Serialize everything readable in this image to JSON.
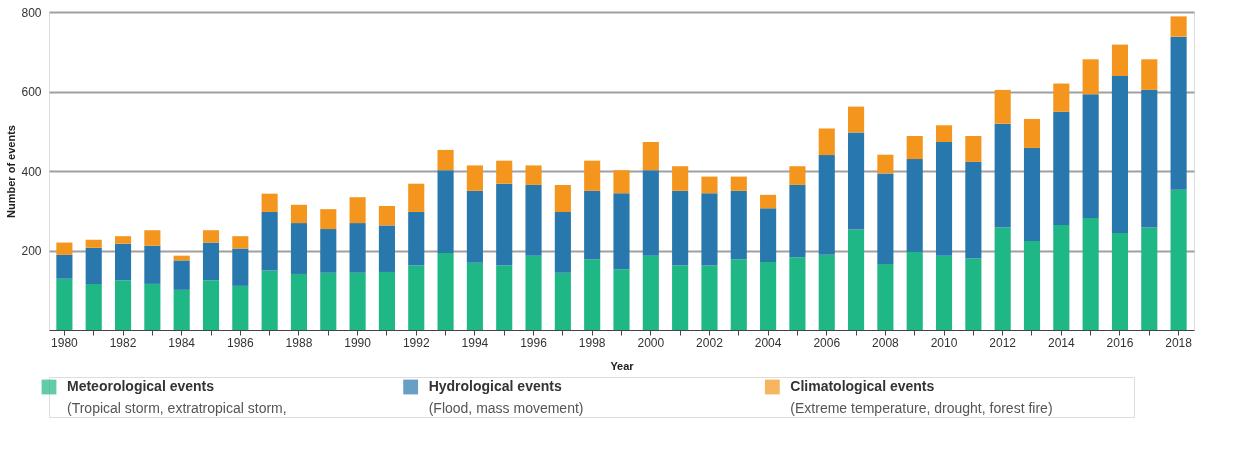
{
  "chart_data": {
    "type": "bar",
    "stacked": true,
    "xlabel": "Year",
    "ylabel": "Number of events",
    "categories": [
      "1980",
      null,
      "1982",
      null,
      "1984",
      null,
      "1986",
      null,
      "1988",
      null,
      "1990",
      null,
      "1992",
      null,
      "1994",
      null,
      "1996",
      null,
      "1998",
      null,
      "2000",
      null,
      "2002",
      null,
      "2004",
      null,
      "2006",
      null,
      "2008",
      null,
      "2010",
      null,
      "2012",
      null,
      "2014",
      null,
      "2016",
      null,
      "2018"
    ],
    "series": [
      {
        "name": "Meteorological events",
        "color": "#20b786",
        "values": [
          129,
          116,
          125,
          116,
          101,
          125,
          111,
          150,
          141,
          144,
          144,
          146,
          162,
          194,
          169,
          162,
          187,
          144,
          178,
          153,
          187,
          162,
          162,
          178,
          171,
          183,
          189,
          253,
          166,
          196,
          187,
          180,
          258,
          224,
          264,
          282,
          244,
          258,
          353
        ]
      },
      {
        "name": "Hydrological events",
        "color": "#2878ad",
        "values": [
          60,
          91,
          92,
          96,
          74,
          95,
          94,
          147,
          128,
          110,
          125,
          117,
          135,
          208,
          181,
          206,
          178,
          153,
          172,
          191,
          215,
          188,
          182,
          172,
          135,
          182,
          251,
          244,
          228,
          234,
          286,
          243,
          261,
          234,
          285,
          311,
          395,
          346,
          385
        ]
      },
      {
        "name": "Climatological events",
        "color": "#f4961e",
        "values": [
          31,
          20,
          19,
          39,
          12,
          31,
          31,
          46,
          46,
          50,
          65,
          49,
          71,
          51,
          64,
          58,
          49,
          68,
          76,
          58,
          71,
          62,
          42,
          36,
          34,
          47,
          67,
          65,
          47,
          58,
          42,
          65,
          85,
          73,
          71,
          88,
          79,
          77,
          51
        ]
      }
    ],
    "ylim": [
      0,
      800
    ],
    "yticks": [
      200,
      400,
      600,
      800
    ],
    "grid": "y",
    "legend": "bottom",
    "annotations": [
      "(Tropical storm, extratropical storm,",
      "(Flood, mass movement)",
      "(Extreme temperature, drought, forest fire)"
    ]
  }
}
